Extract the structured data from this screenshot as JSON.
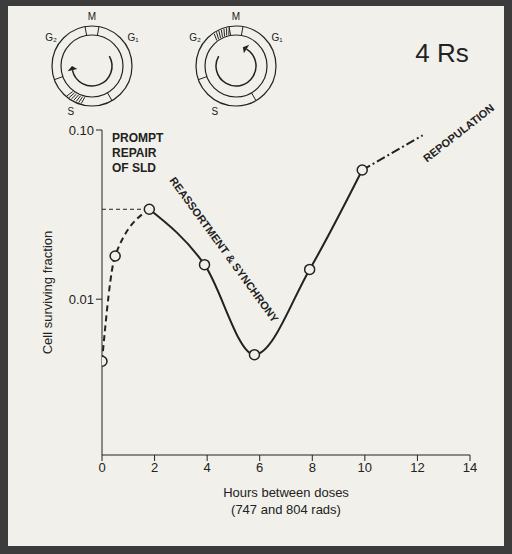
{
  "chart_data": {
    "type": "line",
    "title": "4 Rs",
    "x_label": "Hours between doses",
    "x_sublabel": "(747 and 804 rads)",
    "y_label": "Cell surviving fraction",
    "log": "y",
    "xlim": [
      0,
      14
    ],
    "xticks": [
      0,
      2,
      4,
      6,
      8,
      10,
      12,
      14
    ],
    "ylim": [
      0.0012,
      0.1
    ],
    "yticks": [
      0.01,
      {
        "value": 0.1,
        "label": "0.10"
      }
    ],
    "series": [
      {
        "type": "line",
        "line_style": "dashed",
        "marker": "none",
        "color": "#222222",
        "x": [
          0,
          0.5,
          1.8
        ],
        "values": [
          0.0043,
          0.018,
          0.034
        ]
      },
      {
        "type": "line",
        "line_style": "solid",
        "marker": "none",
        "color": "#222222",
        "x": [
          1.8,
          3.9,
          5.8,
          7.9,
          9.9
        ],
        "values": [
          0.034,
          0.016,
          0.0047,
          0.015,
          0.058
        ]
      },
      {
        "type": "line",
        "line_style": "dashdot",
        "marker": "none",
        "color": "#222222",
        "x": [
          9.9,
          12.2
        ],
        "values": [
          0.058,
          0.093
        ]
      },
      {
        "type": "scatter",
        "marker": "circle",
        "color": "#222222",
        "x": [
          0,
          0.5,
          1.8,
          3.9,
          5.8,
          7.9,
          9.9
        ],
        "values": [
          0.0043,
          0.018,
          0.034,
          0.016,
          0.0047,
          0.015,
          0.058
        ]
      }
    ],
    "annotations": [
      "PROMPT REPAIR OF SLD",
      "REASSORTMENT & SYNCHRONY",
      "REPOPULATION"
    ]
  },
  "cell_cycle_diagrams": [
    {
      "labels": [
        "G₂",
        "M",
        "G₁",
        "S"
      ]
    },
    {
      "labels": [
        "G₂",
        "M",
        "G₁",
        "S"
      ]
    }
  ]
}
